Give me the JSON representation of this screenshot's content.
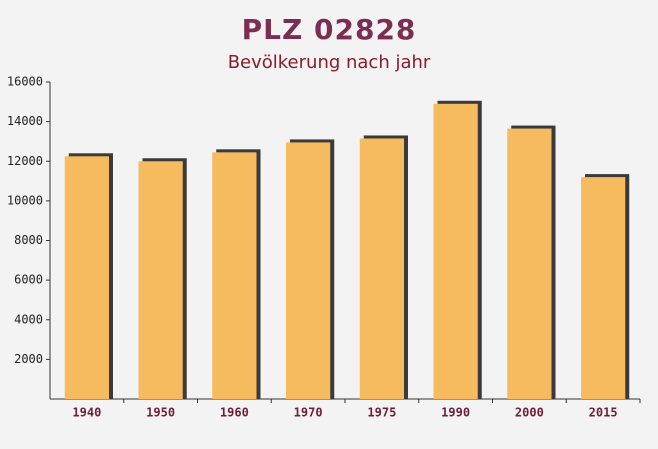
{
  "chart_data": {
    "type": "bar",
    "title": "PLZ 02828",
    "subtitle": "Bevölkerung nach jahr",
    "categories": [
      "1940",
      "1950",
      "1960",
      "1970",
      "1975",
      "1990",
      "2000",
      "2015"
    ],
    "values": [
      12250,
      12000,
      12450,
      12950,
      13150,
      14900,
      13650,
      11200
    ],
    "color": "#f5bb5e",
    "shadow_color": "#3a3a3a",
    "ylim": [
      0,
      16000
    ],
    "yticks": [
      2000,
      4000,
      6000,
      8000,
      10000,
      12000,
      14000,
      16000
    ]
  }
}
